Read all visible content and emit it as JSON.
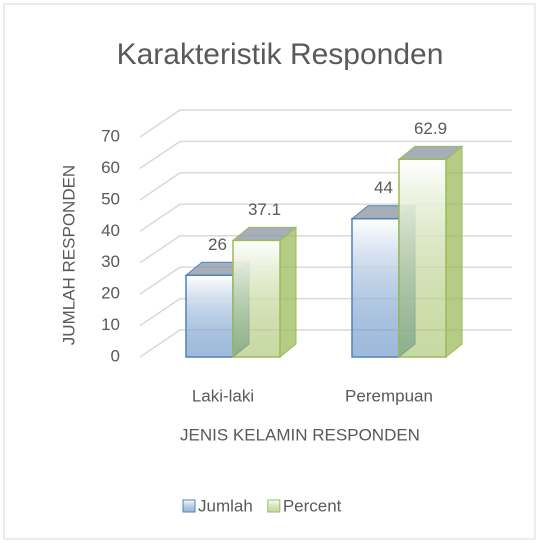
{
  "chart_data": {
    "type": "bar3d",
    "title": "Karakteristik  Responden",
    "x_label": "JENIS KELAMIN RESPONDEN",
    "y_label": "JUMLAH RESPONDEN",
    "categories": [
      "Laki-laki",
      "Perempuan"
    ],
    "series": [
      {
        "name": "Jumlah",
        "color": "#4f81bd",
        "values": [
          26,
          44
        ]
      },
      {
        "name": "Percent",
        "color": "#9bbb59",
        "values": [
          37.1,
          62.9
        ]
      }
    ],
    "ylim": [
      0,
      70
    ],
    "yticks": [
      0,
      10,
      20,
      30,
      40,
      50,
      60,
      70
    ],
    "grid": true,
    "legend": "bottom"
  }
}
